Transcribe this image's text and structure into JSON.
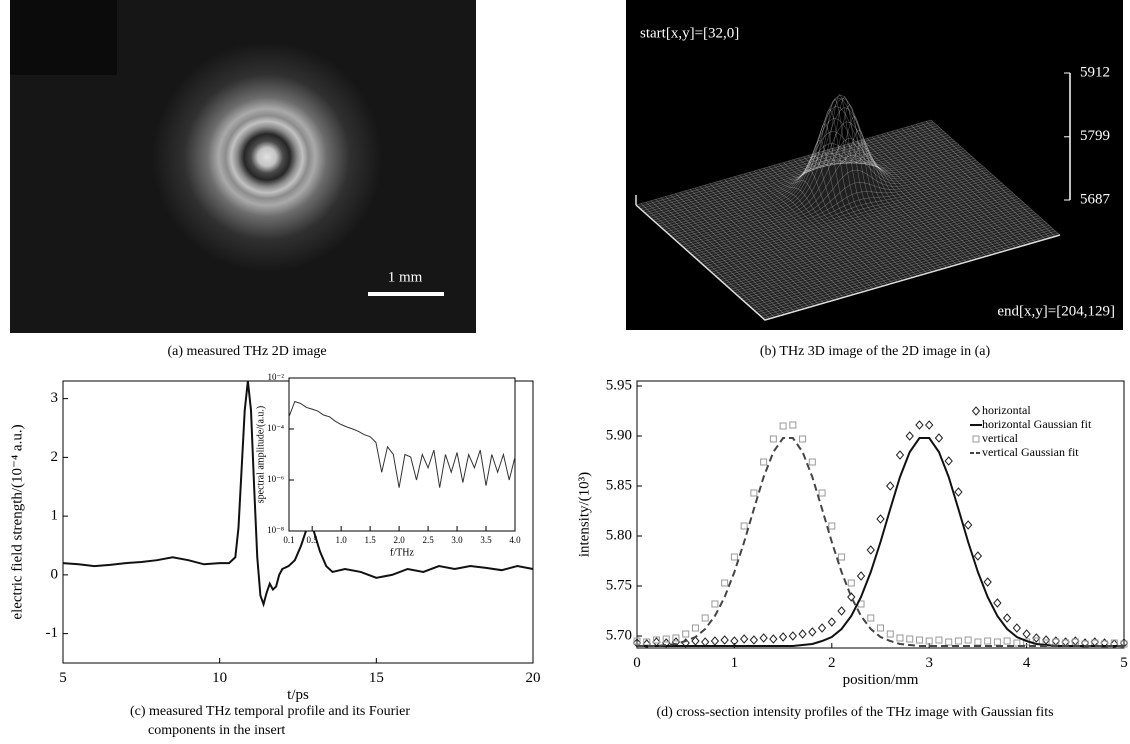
{
  "chart_data": [
    {
      "type": "image",
      "caption": "(a) measured THz 2D image",
      "scale_bar_label": "1 mm"
    },
    {
      "type": "surface",
      "caption": "(b) THz 3D image of the 2D image in (a)",
      "start_label": "start[x,y]=[32,0]",
      "end_label": "end[x,y]=[204,129]",
      "zlim": [
        5687,
        5912
      ],
      "zticks": [
        5687,
        5799,
        5912
      ]
    },
    {
      "type": "line",
      "caption": "(c) measured THz temporal profile and its Fourier components in the insert",
      "xlabel": "t/ps",
      "ylabel": "electric field strength/(10⁻⁴ a.u.)",
      "xlim": [
        5,
        20
      ],
      "ylim": [
        -1.5,
        3.3
      ],
      "xticks": [
        5,
        10,
        15,
        20
      ],
      "yticks": [
        -1,
        0,
        1,
        2,
        3
      ],
      "x": [
        5,
        5.5,
        6,
        6.5,
        7,
        7.5,
        8,
        8.5,
        9,
        9.5,
        10,
        10.3,
        10.5,
        10.6,
        10.7,
        10.8,
        10.9,
        11.0,
        11.1,
        11.2,
        11.3,
        11.4,
        11.5,
        11.6,
        11.7,
        11.8,
        11.9,
        12.0,
        12.2,
        12.4,
        12.6,
        12.8,
        12.9,
        13.0,
        13.2,
        13.4,
        13.6,
        14,
        14.5,
        15,
        15.5,
        16,
        16.5,
        17,
        17.5,
        18,
        18.5,
        19,
        19.5,
        20
      ],
      "series": [
        {
          "color": "#111111",
          "line_style": "solid",
          "values": [
            0.2,
            0.18,
            0.15,
            0.17,
            0.2,
            0.22,
            0.25,
            0.3,
            0.25,
            0.18,
            0.2,
            0.2,
            0.3,
            0.8,
            1.8,
            2.8,
            3.3,
            2.8,
            1.5,
            0.3,
            -0.35,
            -0.5,
            -0.3,
            -0.15,
            -0.25,
            -0.2,
            0.0,
            0.1,
            0.15,
            0.25,
            0.5,
            0.82,
            0.85,
            0.75,
            0.4,
            0.15,
            0.05,
            0.1,
            0.05,
            -0.05,
            0.0,
            0.1,
            0.05,
            0.15,
            0.1,
            0.15,
            0.12,
            0.08,
            0.15,
            0.1
          ]
        }
      ],
      "inset": {
        "type": "line",
        "xlabel": "f/THz",
        "ylabel": "spectral amplitude/(a.u.)",
        "yscale": "log",
        "xlim": [
          0.1,
          4.0
        ],
        "ylim": [
          1e-08,
          0.01
        ],
        "xticks": [
          0.1,
          0.5,
          {
            "value": 1,
            "label": "1.0"
          },
          1.5,
          {
            "value": 2,
            "label": "2.0"
          },
          2.5,
          {
            "value": 3,
            "label": "3.0"
          },
          3.5,
          {
            "value": 4,
            "label": "4.0"
          }
        ],
        "yticks": [
          {
            "value": 1e-08,
            "label": "10⁻⁸"
          },
          {
            "value": 1e-06,
            "label": "10⁻⁶"
          },
          {
            "value": 0.0001,
            "label": "10⁻⁴"
          },
          {
            "value": 0.01,
            "label": "10⁻²"
          }
        ],
        "x": [
          0.1,
          0.2,
          0.3,
          0.4,
          0.5,
          0.6,
          0.7,
          0.8,
          0.9,
          1.0,
          1.1,
          1.2,
          1.3,
          1.4,
          1.5,
          1.6,
          1.7,
          1.8,
          1.9,
          2.0,
          2.1,
          2.2,
          2.3,
          2.4,
          2.5,
          2.6,
          2.7,
          2.8,
          2.9,
          3.0,
          3.1,
          3.2,
          3.3,
          3.4,
          3.5,
          3.6,
          3.7,
          3.8,
          3.9,
          4.0
        ],
        "series": [
          {
            "color": "#333333",
            "line_style": "solid",
            "values": [
              0.0003,
              0.0012,
              0.001,
              0.0007,
              0.0006,
              0.0005,
              0.00035,
              0.0003,
              0.0002,
              0.00015,
              0.00012,
              0.0001,
              8e-05,
              6e-05,
              5e-05,
              3e-05,
              2e-06,
              2e-05,
              1e-05,
              5e-07,
              1e-05,
              8e-06,
              1e-06,
              1e-05,
              3e-06,
              1.5e-05,
              5e-07,
              1e-05,
              2e-06,
              1.2e-05,
              8e-07,
              1e-05,
              3e-06,
              1.5e-05,
              6e-07,
              1e-05,
              2e-06,
              1e-05,
              1e-06,
              8e-06
            ]
          }
        ]
      }
    },
    {
      "type": "line",
      "caption": "(d) cross-section intensity profiles of the THz image with Gaussian fits",
      "xlabel": "position/mm",
      "ylabel": "intensity/(10³)",
      "xlim": [
        0,
        5
      ],
      "ylim": [
        5.688,
        5.955
      ],
      "xticks": [
        0,
        1,
        2,
        3,
        4,
        5
      ],
      "yticks": [
        {
          "value": 5.7,
          "label": "5.70"
        },
        5.75,
        {
          "value": 5.8,
          "label": "5.80"
        },
        5.85,
        {
          "value": 5.9,
          "label": "5.90"
        },
        5.95
      ],
      "legend": "upper right",
      "x": [
        0,
        0.1,
        0.2,
        0.3,
        0.4,
        0.5,
        0.6,
        0.7,
        0.8,
        0.9,
        1.0,
        1.1,
        1.2,
        1.3,
        1.4,
        1.5,
        1.6,
        1.7,
        1.8,
        1.9,
        2.0,
        2.1,
        2.2,
        2.3,
        2.4,
        2.5,
        2.6,
        2.7,
        2.8,
        2.9,
        3.0,
        3.1,
        3.2,
        3.3,
        3.4,
        3.5,
        3.6,
        3.7,
        3.8,
        3.9,
        4.0,
        4.1,
        4.2,
        4.3,
        4.4,
        4.5,
        4.6,
        4.7,
        4.8,
        4.9,
        5.0
      ],
      "series": [
        {
          "name": "horizontal",
          "color": "#222222",
          "marker": "diamond",
          "values": [
            5.693,
            5.692,
            5.694,
            5.693,
            5.694,
            5.693,
            5.695,
            5.694,
            5.695,
            5.696,
            5.695,
            5.697,
            5.696,
            5.698,
            5.697,
            5.699,
            5.7,
            5.702,
            5.704,
            5.708,
            5.714,
            5.725,
            5.739,
            5.76,
            5.786,
            5.817,
            5.85,
            5.881,
            5.9,
            5.911,
            5.911,
            5.898,
            5.875,
            5.844,
            5.811,
            5.78,
            5.754,
            5.733,
            5.718,
            5.708,
            5.702,
            5.698,
            5.696,
            5.695,
            5.694,
            5.695,
            5.693,
            5.694,
            5.693,
            5.692,
            5.693
          ]
        },
        {
          "name": "horizontal Gaussian fit",
          "color": "#111111",
          "line_style": "solid",
          "values": [
            5.69,
            5.69,
            5.69,
            5.69,
            5.69,
            5.69,
            5.69,
            5.69,
            5.69,
            5.69,
            5.69,
            5.69,
            5.69,
            5.69,
            5.69,
            5.69,
            5.69,
            5.691,
            5.692,
            5.695,
            5.699,
            5.707,
            5.72,
            5.739,
            5.764,
            5.794,
            5.827,
            5.859,
            5.884,
            5.898,
            5.898,
            5.884,
            5.859,
            5.827,
            5.794,
            5.764,
            5.739,
            5.72,
            5.707,
            5.699,
            5.695,
            5.692,
            5.691,
            5.69,
            5.69,
            5.69,
            5.69,
            5.69,
            5.69,
            5.69,
            5.69
          ]
        },
        {
          "name": "vertical",
          "color": "#999999",
          "marker": "square",
          "values": [
            5.695,
            5.694,
            5.696,
            5.697,
            5.698,
            5.702,
            5.708,
            5.718,
            5.732,
            5.753,
            5.779,
            5.81,
            5.843,
            5.874,
            5.897,
            5.91,
            5.911,
            5.897,
            5.874,
            5.843,
            5.81,
            5.779,
            5.753,
            5.732,
            5.718,
            5.708,
            5.702,
            5.698,
            5.697,
            5.696,
            5.695,
            5.696,
            5.694,
            5.695,
            5.696,
            5.694,
            5.695,
            5.694,
            5.695,
            5.693,
            5.694,
            5.695,
            5.693,
            5.694,
            5.693,
            5.694,
            5.692,
            5.693,
            5.692,
            5.693,
            5.692
          ]
        },
        {
          "name": "vertical Gaussian fit",
          "color": "#444444",
          "line_style": "dashed",
          "values": [
            5.69,
            5.69,
            5.69,
            5.691,
            5.692,
            5.695,
            5.699,
            5.707,
            5.72,
            5.739,
            5.764,
            5.794,
            5.827,
            5.859,
            5.884,
            5.898,
            5.898,
            5.884,
            5.859,
            5.827,
            5.794,
            5.764,
            5.739,
            5.72,
            5.707,
            5.699,
            5.695,
            5.692,
            5.691,
            5.69,
            5.69,
            5.69,
            5.69,
            5.69,
            5.69,
            5.69,
            5.69,
            5.69,
            5.69,
            5.69,
            5.69,
            5.69,
            5.69,
            5.69,
            5.69,
            5.69,
            5.69,
            5.69,
            5.69,
            5.69,
            5.69
          ]
        }
      ]
    }
  ]
}
